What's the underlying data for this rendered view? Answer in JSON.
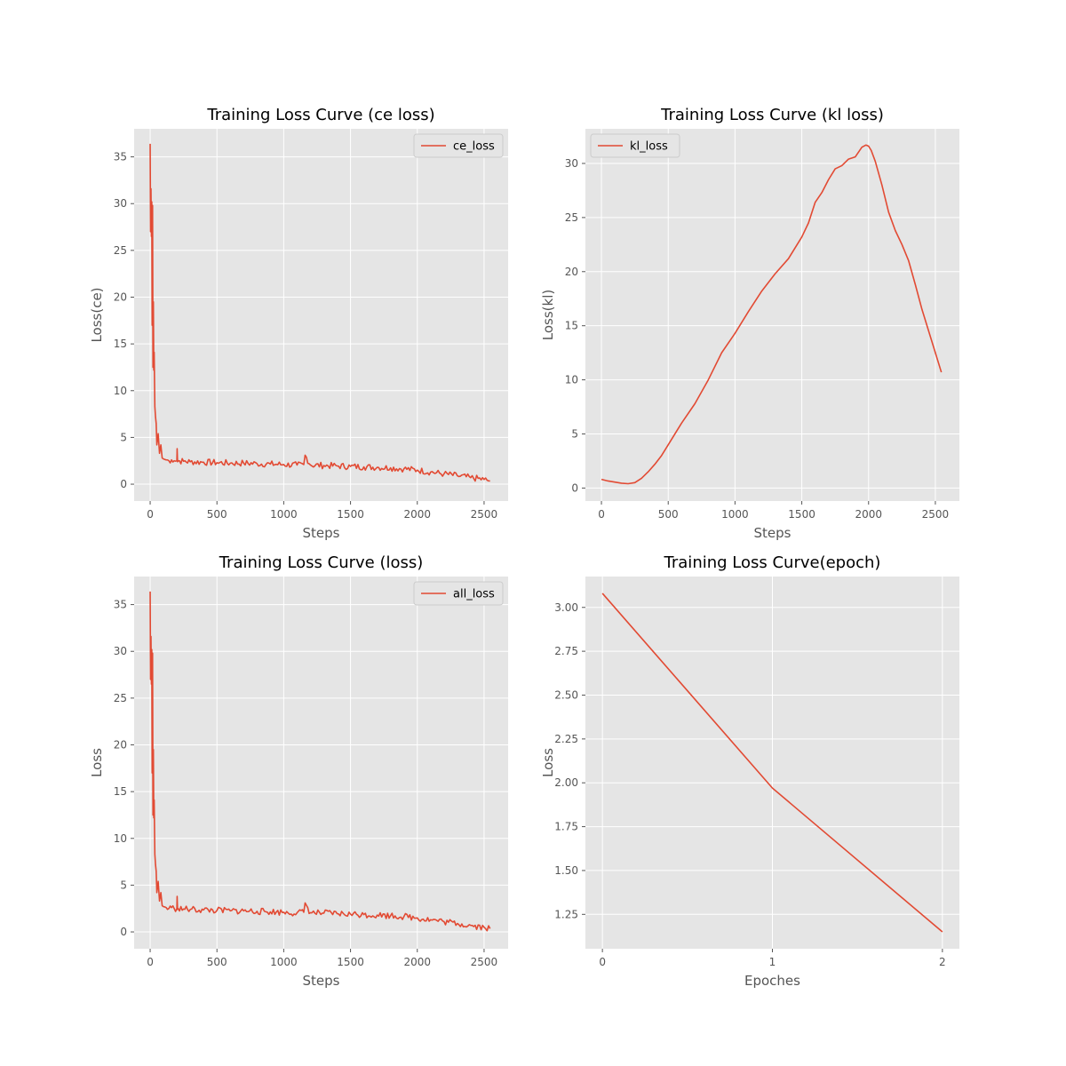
{
  "figure": {
    "background": "#ffffff",
    "axes_background": "#e5e5e5",
    "grid_color": "#ffffff",
    "line_color": "#e24a33"
  },
  "chart_data": [
    {
      "type": "line",
      "title": "Training Loss Curve (ce loss)",
      "xlabel": "Steps",
      "ylabel": "Loss(ce)",
      "xlim": [
        -120,
        2680
      ],
      "ylim": [
        -1.8,
        38.0
      ],
      "xticks": [
        0,
        500,
        1000,
        1500,
        2000,
        2500
      ],
      "yticks": [
        0,
        5,
        10,
        15,
        20,
        25,
        30,
        35
      ],
      "legend": "top-right",
      "grid": true,
      "series": [
        {
          "name": "ce_loss",
          "x": [
            0,
            3,
            6,
            9,
            12,
            15,
            18,
            21,
            24,
            27,
            30,
            35,
            40,
            45,
            50,
            60,
            70,
            80,
            90,
            100,
            120,
            140,
            160,
            180,
            200,
            202,
            205,
            210,
            250,
            300,
            400,
            500,
            600,
            700,
            800,
            900,
            1000,
            1100,
            1150,
            1160,
            1200,
            1300,
            1400,
            1500,
            1600,
            1700,
            1800,
            1900,
            2000,
            2100,
            2200,
            2300,
            2400,
            2500,
            2545
          ],
          "y": [
            36.4,
            27.0,
            31.6,
            26.5,
            30.2,
            17.0,
            29.8,
            12.5,
            19.5,
            12.2,
            14.1,
            8.3,
            7.2,
            6.5,
            4.2,
            5.4,
            3.3,
            4.2,
            2.8,
            2.7,
            2.6,
            2.5,
            2.6,
            2.5,
            2.5,
            3.8,
            2.4,
            2.5,
            2.45,
            2.4,
            2.35,
            2.3,
            2.25,
            2.25,
            2.2,
            2.15,
            2.1,
            2.05,
            2.1,
            3.1,
            2.05,
            2.0,
            1.95,
            1.9,
            1.85,
            1.8,
            1.75,
            1.65,
            1.5,
            1.3,
            1.1,
            0.9,
            0.7,
            0.5,
            0.35
          ],
          "noise": 0.35
        }
      ]
    },
    {
      "type": "line",
      "title": "Training Loss Curve (kl loss)",
      "xlabel": "Steps",
      "ylabel": "Loss(kl)",
      "xlim": [
        -120,
        2680
      ],
      "ylim": [
        -1.2,
        33.2
      ],
      "xticks": [
        0,
        500,
        1000,
        1500,
        2000,
        2500
      ],
      "yticks": [
        0,
        5,
        10,
        15,
        20,
        25,
        30
      ],
      "legend": "top-left",
      "grid": true,
      "series": [
        {
          "name": "kl_loss",
          "x": [
            0,
            50,
            100,
            150,
            200,
            250,
            300,
            350,
            400,
            450,
            500,
            600,
            700,
            800,
            900,
            1000,
            1100,
            1200,
            1300,
            1400,
            1500,
            1550,
            1600,
            1650,
            1700,
            1750,
            1800,
            1850,
            1900,
            1950,
            1980,
            2000,
            2020,
            2050,
            2100,
            2150,
            2200,
            2250,
            2300,
            2350,
            2400,
            2450,
            2500,
            2545
          ],
          "y": [
            0.8,
            0.65,
            0.55,
            0.45,
            0.4,
            0.5,
            0.9,
            1.5,
            2.2,
            3.0,
            4.0,
            6.0,
            7.8,
            10.0,
            12.5,
            14.3,
            16.3,
            18.2,
            19.8,
            21.2,
            23.2,
            24.5,
            26.4,
            27.3,
            28.5,
            29.5,
            29.8,
            30.4,
            30.6,
            31.5,
            31.7,
            31.6,
            31.2,
            30.2,
            28.0,
            25.5,
            23.8,
            22.5,
            21.0,
            18.8,
            16.5,
            14.5,
            12.5,
            10.7
          ],
          "noise": 0
        }
      ]
    },
    {
      "type": "line",
      "title": "Training Loss Curve (loss)",
      "xlabel": "Steps",
      "ylabel": "Loss",
      "xlim": [
        -120,
        2680
      ],
      "ylim": [
        -1.8,
        38.0
      ],
      "xticks": [
        0,
        500,
        1000,
        1500,
        2000,
        2500
      ],
      "yticks": [
        0,
        5,
        10,
        15,
        20,
        25,
        30,
        35
      ],
      "legend": "top-right",
      "grid": true,
      "series": [
        {
          "name": "all_loss",
          "x": [
            0,
            3,
            6,
            9,
            12,
            15,
            18,
            21,
            24,
            27,
            30,
            35,
            40,
            45,
            50,
            60,
            70,
            80,
            90,
            100,
            120,
            140,
            160,
            180,
            200,
            202,
            205,
            210,
            250,
            300,
            400,
            500,
            600,
            700,
            800,
            900,
            1000,
            1100,
            1150,
            1160,
            1200,
            1300,
            1400,
            1500,
            1600,
            1700,
            1800,
            1900,
            2000,
            2100,
            2200,
            2300,
            2400,
            2500,
            2545
          ],
          "y": [
            36.4,
            27.0,
            31.6,
            26.5,
            30.2,
            17.0,
            29.8,
            12.5,
            19.5,
            12.2,
            14.1,
            8.3,
            7.2,
            6.5,
            4.2,
            5.4,
            3.3,
            4.2,
            2.8,
            2.7,
            2.6,
            2.5,
            2.6,
            2.5,
            2.5,
            3.8,
            2.4,
            2.5,
            2.45,
            2.4,
            2.35,
            2.3,
            2.25,
            2.25,
            2.2,
            2.15,
            2.1,
            2.05,
            2.1,
            3.1,
            2.05,
            2.0,
            1.95,
            1.9,
            1.85,
            1.8,
            1.75,
            1.65,
            1.5,
            1.3,
            1.1,
            0.9,
            0.7,
            0.5,
            0.35
          ],
          "noise": 0.35
        }
      ]
    },
    {
      "type": "line",
      "title": "Training Loss Curve(epoch)",
      "xlabel": "Epoches",
      "ylabel": "Loss",
      "xlim": [
        -0.1,
        2.1
      ],
      "ylim": [
        1.054,
        3.176
      ],
      "xticks": [
        0,
        1,
        2
      ],
      "yticks": [
        1.25,
        1.5,
        1.75,
        2.0,
        2.25,
        2.5,
        2.75,
        3.0
      ],
      "ytick_labels": [
        "1.25",
        "1.50",
        "1.75",
        "2.00",
        "2.25",
        "2.50",
        "2.75",
        "3.00"
      ],
      "legend": "none",
      "grid": true,
      "series": [
        {
          "x": [
            0,
            1,
            2
          ],
          "y": [
            3.08,
            1.97,
            1.15
          ],
          "noise": 0
        }
      ]
    }
  ]
}
